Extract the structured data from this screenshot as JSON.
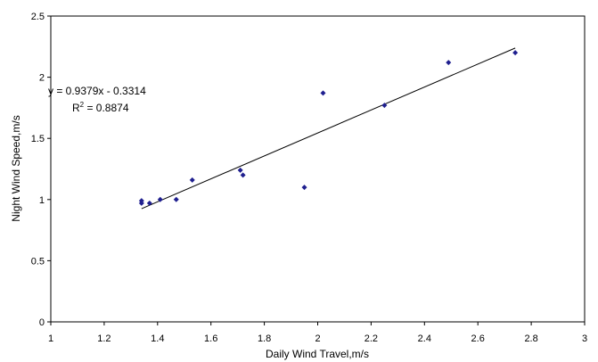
{
  "chart_data": {
    "type": "scatter",
    "title": "",
    "xlabel": "Daily Wind Travel,m/s",
    "ylabel": "Night Wind Speed,m/s",
    "xlim": [
      1,
      3
    ],
    "ylim": [
      0,
      2.5
    ],
    "x_ticks": [
      "1",
      "1.2",
      "1.4",
      "1.6",
      "1.8",
      "2",
      "2.2",
      "2.4",
      "2.6",
      "2.8",
      "3"
    ],
    "y_ticks": [
      "0",
      "0.5",
      "1",
      "1.5",
      "2",
      "2.5"
    ],
    "grid": false,
    "legend": "none",
    "marker_color": "#1f1f8f",
    "series": [
      {
        "points": [
          {
            "x": 1.34,
            "y": 0.97
          },
          {
            "x": 1.34,
            "y": 0.99
          },
          {
            "x": 1.37,
            "y": 0.97
          },
          {
            "x": 1.41,
            "y": 1.0
          },
          {
            "x": 1.47,
            "y": 1.0
          },
          {
            "x": 1.53,
            "y": 1.16
          },
          {
            "x": 1.71,
            "y": 1.24
          },
          {
            "x": 1.72,
            "y": 1.2
          },
          {
            "x": 1.95,
            "y": 1.1
          },
          {
            "x": 2.02,
            "y": 1.87
          },
          {
            "x": 2.25,
            "y": 1.77
          },
          {
            "x": 2.49,
            "y": 2.12
          },
          {
            "x": 2.74,
            "y": 2.2
          }
        ]
      }
    ],
    "trendline": {
      "slope": 0.9379,
      "intercept": -0.3314,
      "x_range": [
        1.34,
        2.74
      ],
      "equation": "y = 0.9379x - 0.3314",
      "r2_label": "R",
      "r2_sup": "2",
      "r2_value": " = 0.8874"
    }
  }
}
